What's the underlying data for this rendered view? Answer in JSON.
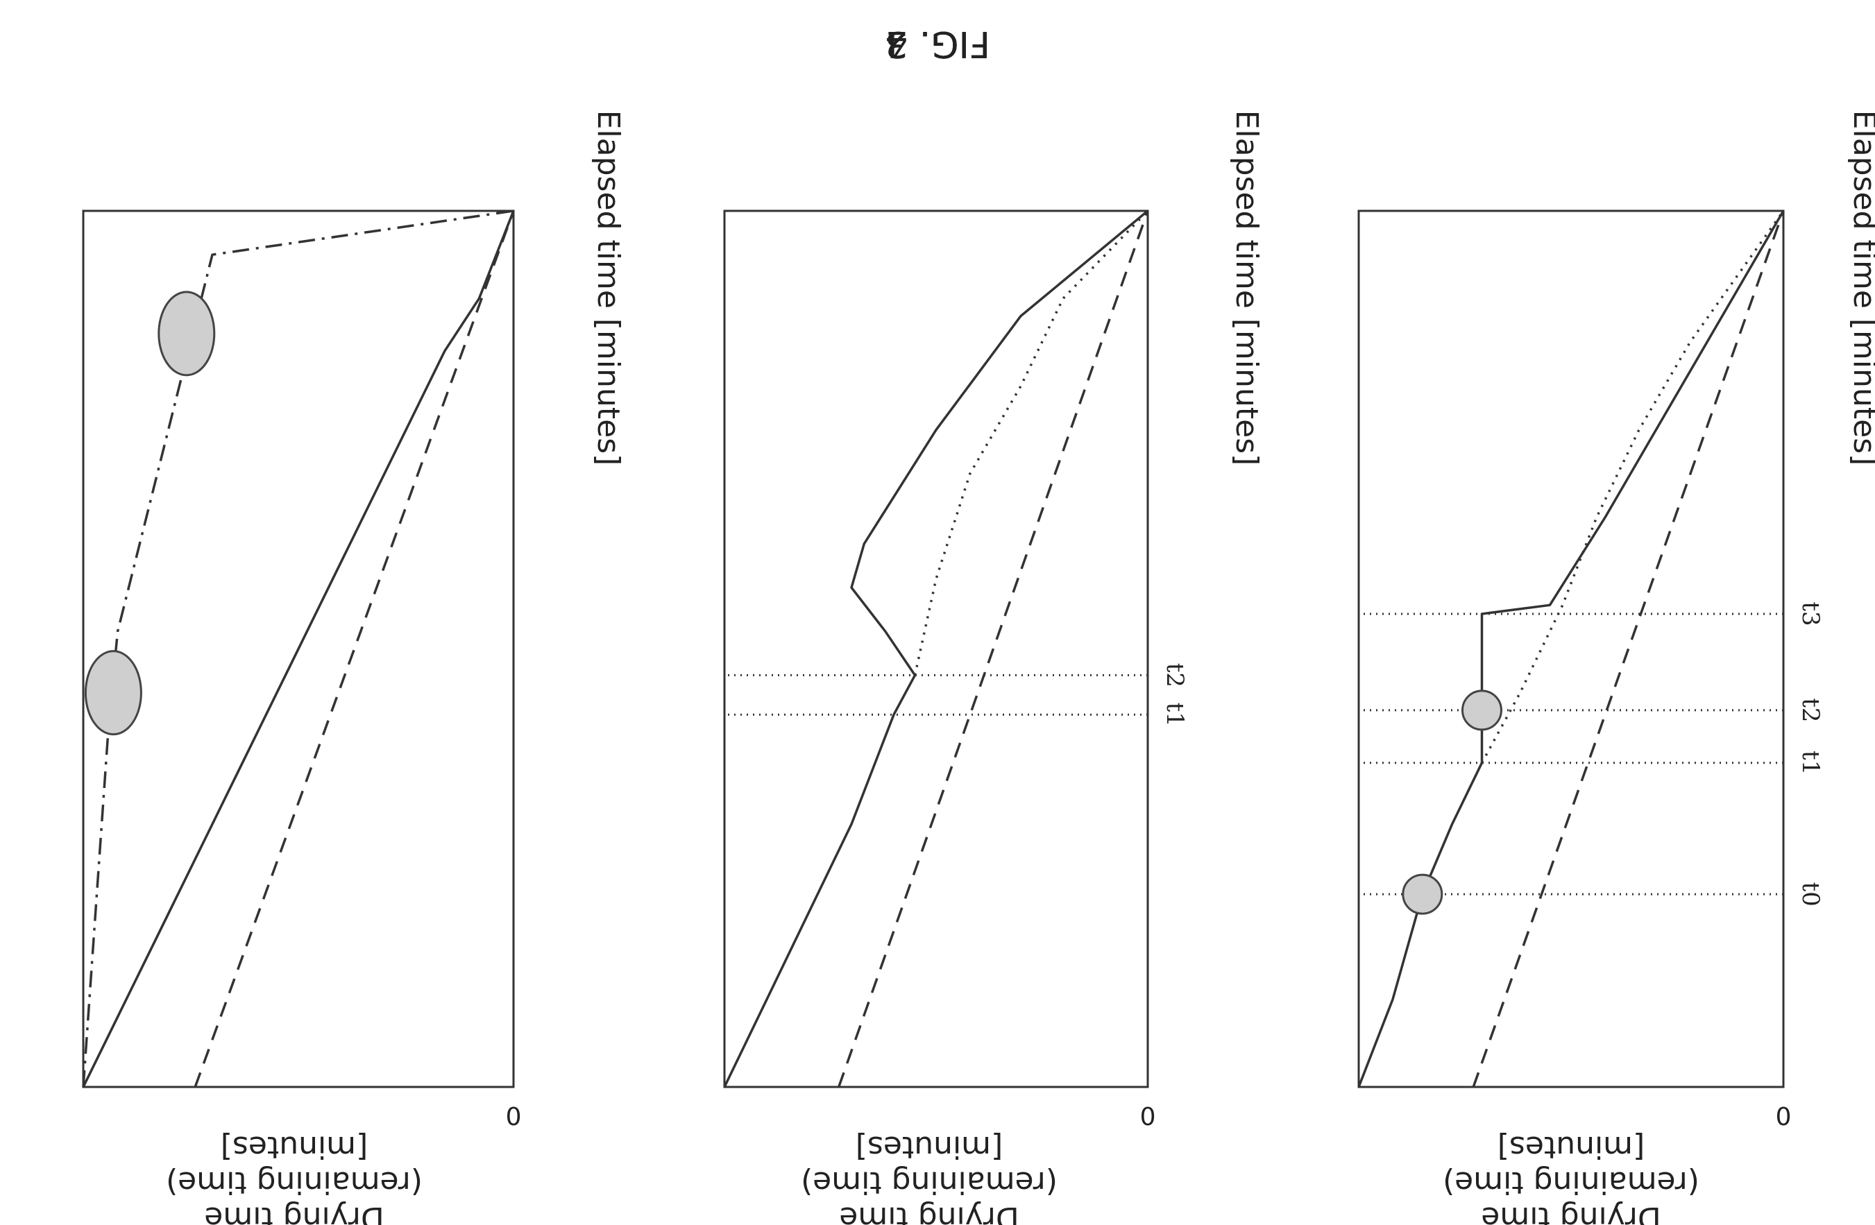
{
  "colors": {
    "line": "#333333",
    "marker_fill": "#cfcfcf",
    "background": "#ffffff"
  },
  "chart_data": [
    {
      "type": "line",
      "title": "FIG. 2",
      "xlabel": "Elapsed time [minutes]",
      "ylabel": [
        "Drying time",
        "(remaining time)",
        "[minutes]"
      ],
      "origin_label": "0",
      "xlim": [
        0,
        100
      ],
      "ylim": [
        0,
        100
      ],
      "grid": false,
      "ticks": [],
      "series": [
        {
          "style": "solid",
          "points": [
            [
              0,
              100
            ],
            [
              6,
              94
            ],
            [
              12,
              88
            ],
            [
              18,
              82
            ],
            [
              24,
              76
            ],
            [
              30,
              70
            ],
            [
              36,
              64
            ],
            [
              42,
              58
            ],
            [
              48,
              52
            ],
            [
              54,
              46
            ],
            [
              60,
              40
            ],
            [
              66,
              34
            ],
            [
              72,
              28
            ],
            [
              78,
              22
            ],
            [
              84,
              16
            ],
            [
              90,
              8
            ],
            [
              100,
              0
            ]
          ]
        },
        {
          "style": "dashed",
          "points": [
            [
              0,
              74
            ],
            [
              100,
              0
            ]
          ]
        },
        {
          "style": "dashdot",
          "points": [
            [
              0,
              100
            ],
            [
              42,
              94
            ],
            [
              52,
              92
            ],
            [
              95,
              70
            ],
            [
              100,
              0
            ]
          ]
        }
      ],
      "markers": [
        {
          "x": 45,
          "y": 93
        },
        {
          "x": 86,
          "y": 76
        }
      ]
    },
    {
      "type": "line",
      "title": "FIG. 3",
      "xlabel": "Elapsed time [minutes]",
      "ylabel": [
        "Drying time",
        "(remaining time)",
        "[minutes]"
      ],
      "origin_label": "0",
      "xlim": [
        0,
        100
      ],
      "ylim": [
        0,
        100
      ],
      "grid": false,
      "ticks": [
        {
          "label": "t1",
          "x": 42.5
        },
        {
          "label": "t2",
          "x": 47
        }
      ],
      "series": [
        {
          "style": "solid",
          "points": [
            [
              0,
              100
            ],
            [
              10,
              90
            ],
            [
              20,
              80
            ],
            [
              30,
              70
            ],
            [
              42.5,
              60
            ],
            [
              47,
              55
            ],
            [
              52,
              62
            ],
            [
              57,
              70
            ],
            [
              62,
              67
            ],
            [
              75,
              50
            ],
            [
              88,
              30
            ],
            [
              100,
              0
            ]
          ]
        },
        {
          "style": "dotted",
          "points": [
            [
              47,
              55
            ],
            [
              58,
              50
            ],
            [
              70,
              42
            ],
            [
              80,
              30
            ],
            [
              90,
              20
            ],
            [
              100,
              0
            ]
          ]
        },
        {
          "style": "dashed",
          "points": [
            [
              0,
              73
            ],
            [
              100,
              0
            ]
          ]
        }
      ],
      "markers": []
    },
    {
      "type": "line",
      "title": "FIG. 4",
      "xlabel": "Elapsed time [minutes]",
      "ylabel": [
        "Drying time",
        "(remaining time)",
        "[minutes]"
      ],
      "origin_label": "0",
      "xlim": [
        0,
        100
      ],
      "ylim": [
        0,
        100
      ],
      "grid": false,
      "ticks": [
        {
          "label": "t0",
          "x": 22
        },
        {
          "label": "t1",
          "x": 37
        },
        {
          "label": "t2",
          "x": 43
        },
        {
          "label": "t3",
          "x": 54
        }
      ],
      "series": [
        {
          "style": "solid",
          "points": [
            [
              0,
              100
            ],
            [
              10,
              92
            ],
            [
              22,
              85
            ],
            [
              30,
              78
            ],
            [
              37,
              71
            ],
            [
              43,
              71
            ],
            [
              54,
              71
            ],
            [
              55,
              55
            ],
            [
              65,
              42
            ],
            [
              75,
              30
            ],
            [
              85,
              18
            ],
            [
              100,
              0
            ]
          ]
        },
        {
          "style": "dotted",
          "points": [
            [
              37,
              71
            ],
            [
              45,
              62
            ],
            [
              55,
              52
            ],
            [
              65,
              44
            ],
            [
              75,
              34
            ],
            [
              85,
              22
            ],
            [
              100,
              0
            ]
          ]
        },
        {
          "style": "dashed",
          "points": [
            [
              0,
              73
            ],
            [
              100,
              0
            ]
          ]
        }
      ],
      "markers": [
        {
          "x": 22,
          "y": 85
        },
        {
          "x": 43,
          "y": 71
        }
      ]
    }
  ]
}
